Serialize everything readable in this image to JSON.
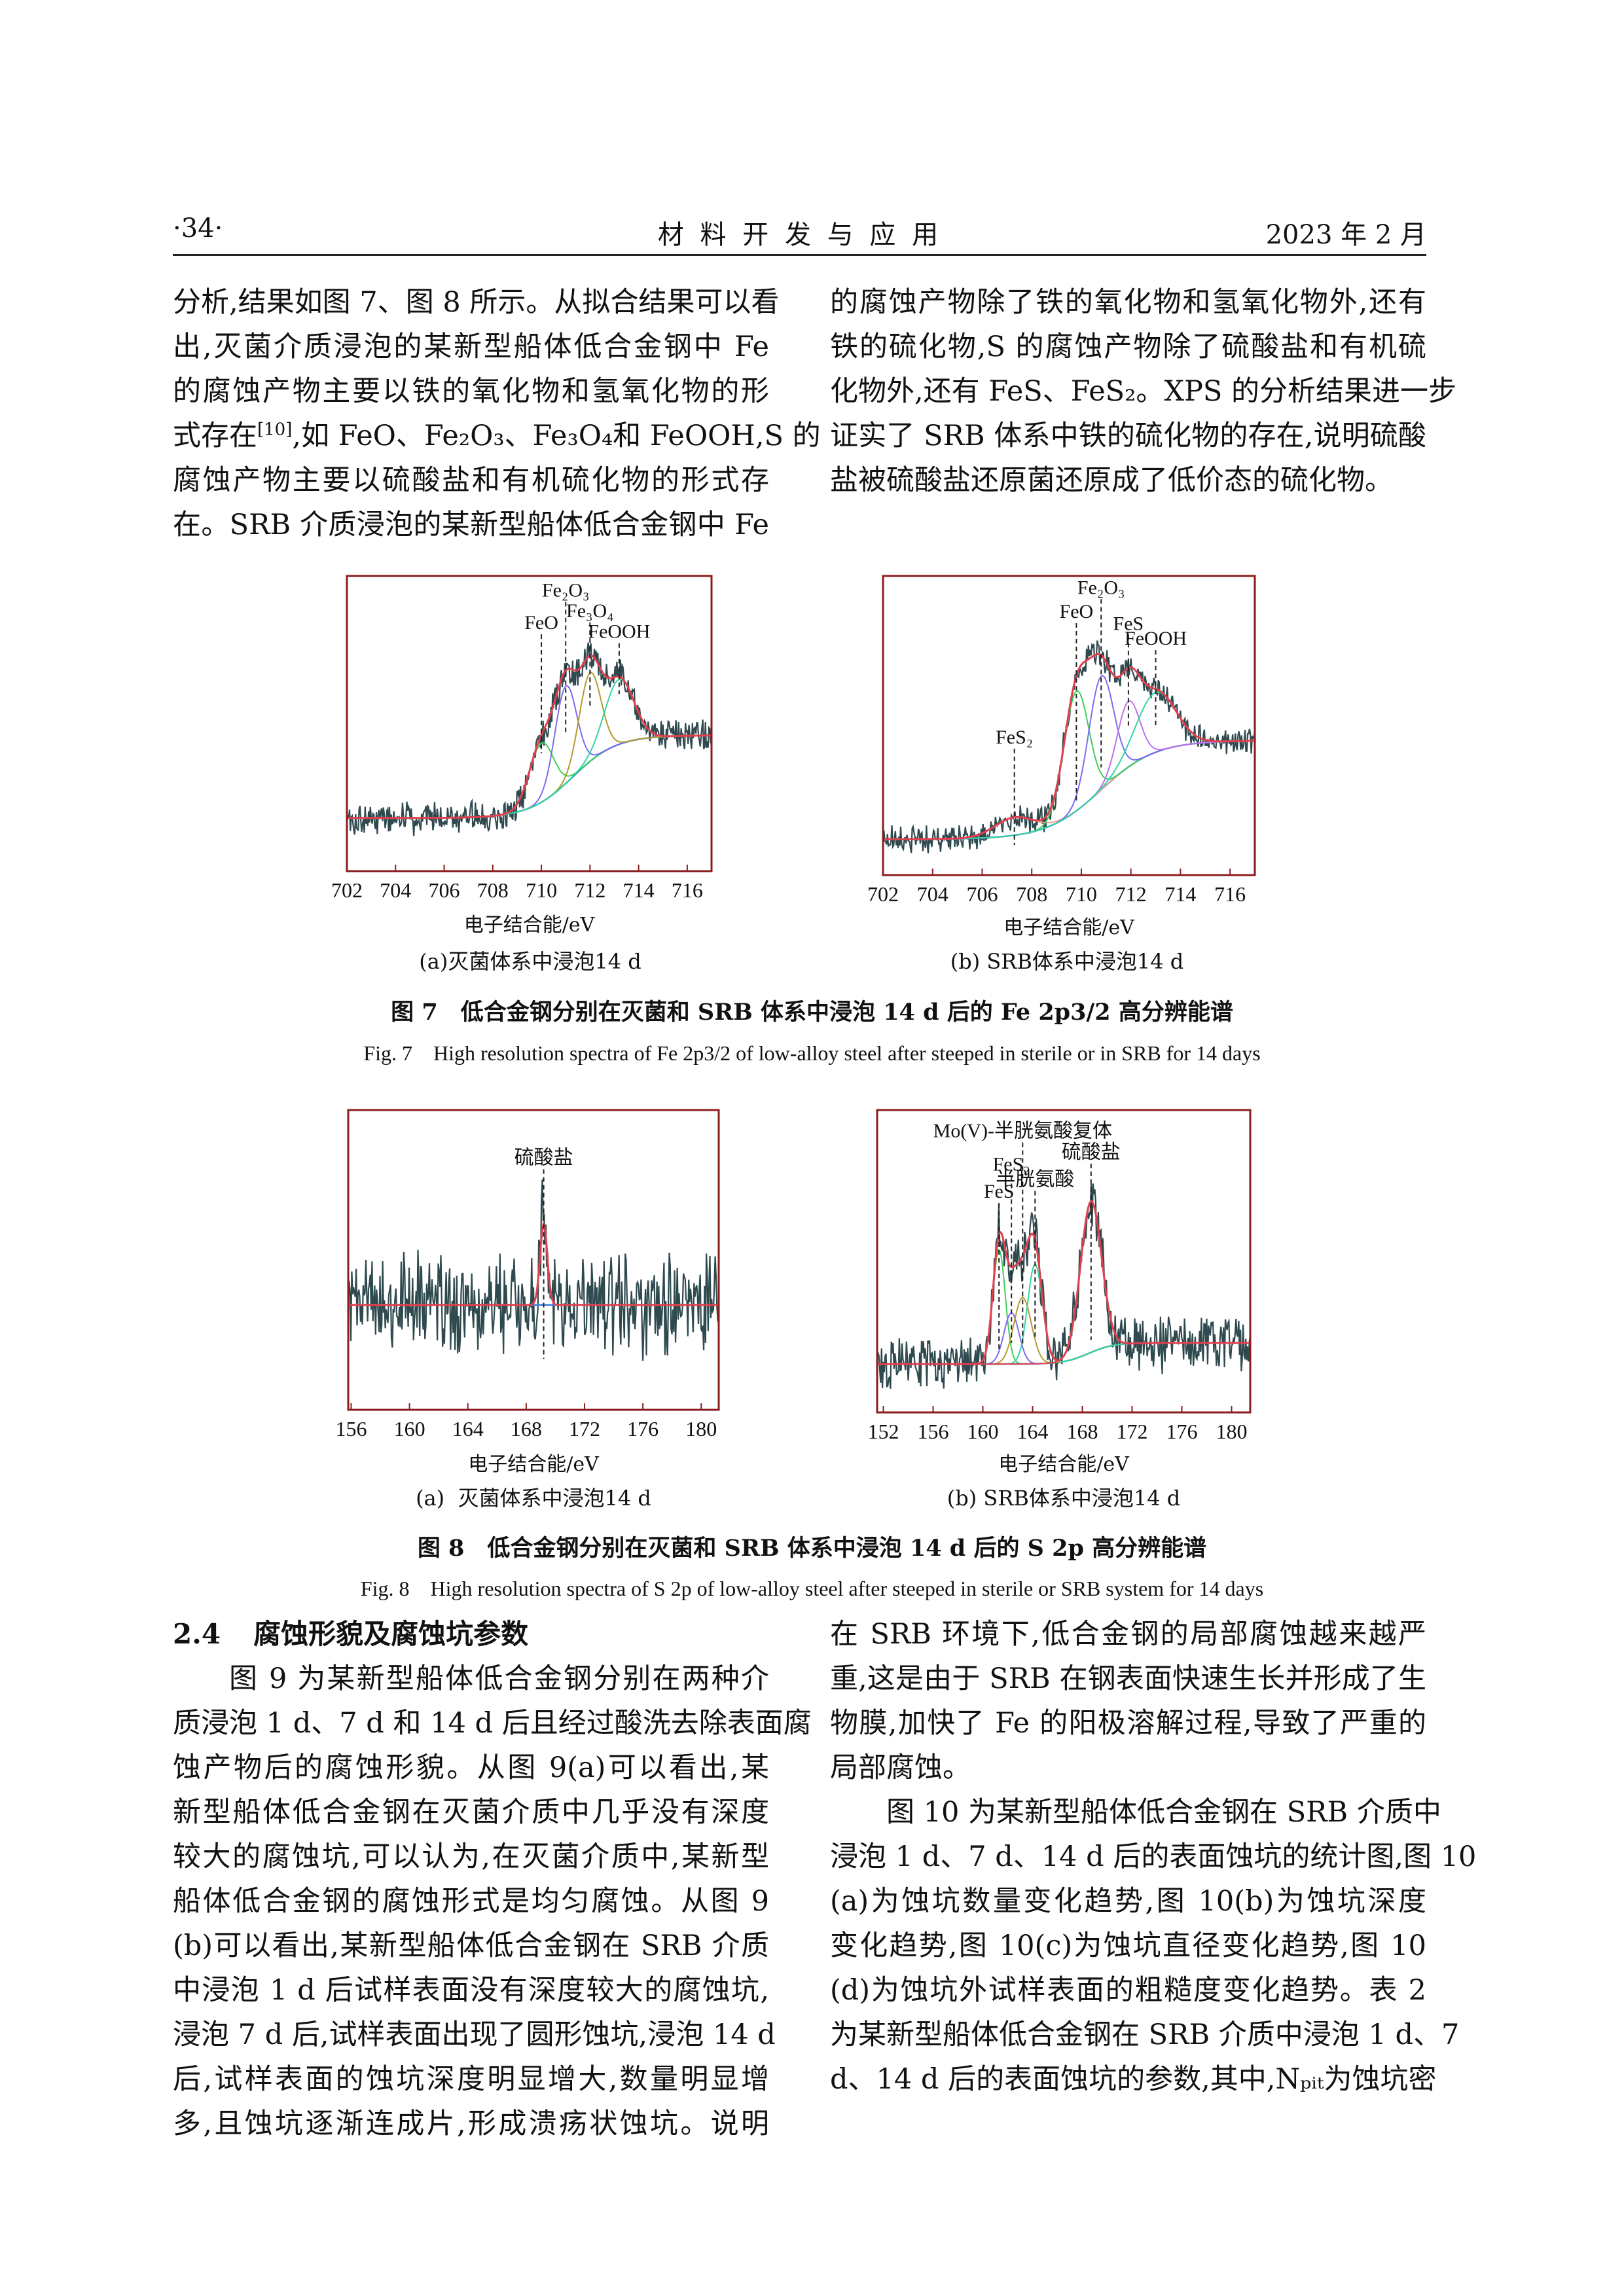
{
  "header": {
    "page": "·34·",
    "journal": "材 料 开 发 与 应 用",
    "date": "2023 年 2 月"
  },
  "text_top_left": [
    "分析,结果如图 7、图 8 所示。从拟合结果可以看",
    "出,灭菌介质浸泡的某新型船体低合金钢中 Fe",
    "的腐蚀产物主要以铁的氧化物和氢氧化物的形",
    [
      {
        "t": "式存在"
      },
      {
        "sup": "[10]"
      },
      {
        "t": ",如 FeO、Fe₂O₃、Fe₃O₄和 FeOOH,S 的"
      }
    ],
    "腐蚀产物主要以硫酸盐和有机硫化物的形式存",
    "在。SRB 介质浸泡的某新型船体低合金钢中 Fe"
  ],
  "text_top_right": [
    "的腐蚀产物除了铁的氧化物和氢氧化物外,还有",
    "铁的硫化物,S 的腐蚀产物除了硫酸盐和有机硫",
    "化物外,还有 FeS、FeS₂。XPS 的分析结果进一步",
    "证实了 SRB 体系中铁的硫化物的存在,说明硫酸",
    "盐被硫酸盐还原菌还原成了低价态的硫化物。"
  ],
  "figure7": {
    "caption_cn": "图 7　低合金钢分别在灭菌和 SRB 体系中浸泡 14 d 后的 Fe 2p3/2 高分辨能谱",
    "caption_en": "Fig. 7　High resolution spectra of Fe 2p3/2 of low-alloy steel after steeped in sterile or in SRB for 14 days",
    "sub_a": "(a)灭菌体系中浸泡14 d",
    "sub_b": "(b) SRB体系中浸泡14 d"
  },
  "figure8": {
    "caption_cn": "图 8　低合金钢分别在灭菌和 SRB 体系中浸泡 14 d 后的 S 2p 高分辨能谱",
    "caption_en": "Fig. 8　High resolution spectra of S 2p of low-alloy steel after steeped in sterile or SRB system for 14 days",
    "sub_a": "(a)  灭菌体系中浸泡14 d",
    "sub_b": "(b) SRB体系中浸泡14 d"
  },
  "chart_data": [
    {
      "id": "fig7a",
      "type": "line",
      "xlabel": "电子结合能/eV",
      "xlim": [
        702,
        717
      ],
      "xticks": [
        702,
        704,
        706,
        708,
        710,
        712,
        714,
        716
      ],
      "yticks": false,
      "grid": false,
      "peaks": [
        {
          "label": "FeO",
          "x": 710.0
        },
        {
          "label": "Fe₂O₃",
          "x": 711.0
        },
        {
          "label": "Fe₃O₄",
          "x": 712.0
        },
        {
          "label": "FeOOH",
          "x": 713.2
        }
      ],
      "colors": {
        "raw": "#2f4a4f",
        "fit": "#e2404e",
        "frame": "#8b1c1c"
      }
    },
    {
      "id": "fig7b",
      "type": "line",
      "xlabel": "电子结合能/eV",
      "xlim": [
        702,
        717
      ],
      "xticks": [
        702,
        704,
        706,
        708,
        710,
        712,
        714,
        716
      ],
      "yticks": false,
      "grid": false,
      "peaks": [
        {
          "label": "FeS₂",
          "x": 707.3
        },
        {
          "label": "FeO",
          "x": 709.8
        },
        {
          "label": "Fe₂O₃",
          "x": 710.8
        },
        {
          "label": "FeS",
          "x": 711.9
        },
        {
          "label": "FeOOH",
          "x": 713.0
        }
      ],
      "colors": {
        "raw": "#2f4a4f",
        "fit": "#e2404e",
        "frame": "#8b1c1c"
      }
    },
    {
      "id": "fig8a",
      "type": "line",
      "xlabel": "电子结合能/eV",
      "xlim": [
        155.8,
        181.2
      ],
      "xticks": [
        156,
        160,
        164,
        168,
        172,
        176,
        180
      ],
      "yticks": false,
      "grid": false,
      "peaks": [
        {
          "label": "硫酸盐",
          "x": 169.2
        }
      ],
      "colors": {
        "raw": "#2f4a4f",
        "fit": "#e2404e",
        "frame": "#8b1c1c"
      }
    },
    {
      "id": "fig8b",
      "type": "line",
      "xlabel": "电子结合能/eV",
      "xlim": [
        151.5,
        181.5
      ],
      "xticks": [
        152,
        156,
        160,
        164,
        168,
        172,
        176,
        180
      ],
      "yticks": false,
      "grid": false,
      "peaks": [
        {
          "label": "FeS",
          "x": 161.3
        },
        {
          "label": "FeS₂",
          "x": 162.3
        },
        {
          "label": "Mo(V)-半胱氨酸复体",
          "x": 163.2
        },
        {
          "label": "半胱氨酸",
          "x": 164.2
        },
        {
          "label": "硫酸盐",
          "x": 168.7
        }
      ],
      "colors": {
        "raw": "#2f4a4f",
        "fit": "#e2404e",
        "frame": "#8b1c1c"
      }
    }
  ],
  "section": {
    "number": "2.4",
    "title": "腐蚀形貌及腐蚀坑参数"
  },
  "text_bottom_left": [
    "图 9 为某新型船体低合金钢分别在两种介",
    "质浸泡 1 d、7 d 和 14 d 后且经过酸洗去除表面腐",
    "蚀产物后的腐蚀形貌。从图 9(a)可以看出,某",
    "新型船体低合金钢在灭菌介质中几乎没有深度",
    "较大的腐蚀坑,可以认为,在灭菌介质中,某新型",
    "船体低合金钢的腐蚀形式是均匀腐蚀。从图 9",
    "(b)可以看出,某新型船体低合金钢在 SRB 介质",
    "中浸泡 1 d 后试样表面没有深度较大的腐蚀坑,",
    "浸泡 7 d 后,试样表面出现了圆形蚀坑,浸泡 14 d",
    "后,试样表面的蚀坑深度明显增大,数量明显增",
    "多,且蚀坑逐渐连成片,形成溃疡状蚀坑。说明"
  ],
  "text_bottom_right": [
    "在 SRB 环境下,低合金钢的局部腐蚀越来越严",
    "重,这是由于 SRB 在钢表面快速生长并形成了生",
    "物膜,加快了 Fe 的阳极溶解过程,导致了严重的",
    "局部腐蚀。",
    "图 10 为某新型船体低合金钢在 SRB 介质中",
    "浸泡 1 d、7 d、14 d 后的表面蚀坑的统计图,图 10",
    "(a)为蚀坑数量变化趋势,图 10(b)为蚀坑深度",
    "变化趋势,图 10(c)为蚀坑直径变化趋势,图 10",
    "(d)为蚀坑外试样表面的粗糙度变化趋势。表 2",
    "为某新型船体低合金钢在 SRB 介质中浸泡 1 d、7",
    "d、14 d 后的表面蚀坑的参数,其中,Nₚᵢₜ为蚀坑密"
  ]
}
